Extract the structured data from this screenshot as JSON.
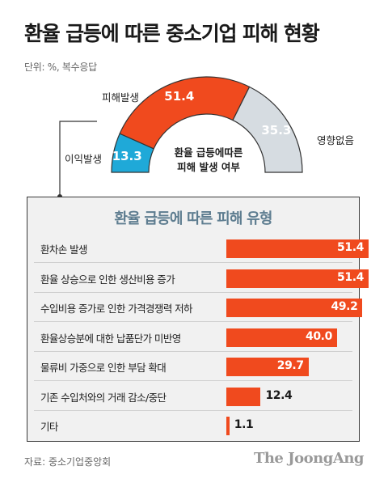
{
  "title": "환율 급등에 따른 중소기업 피해 현황",
  "unit_note": "단위: %, 복수응답",
  "source": "자료: 중소기업중앙회",
  "logo": "The JoongAng",
  "colors": {
    "damage": "#f04a1e",
    "benefit": "#1fa9d8",
    "none": "#d6dce1",
    "panel_title": "#5e7d90"
  },
  "chart_data": [
    {
      "type": "pie",
      "subtype": "half-donut",
      "title": "환율 급등에따른 피해 발생 여부",
      "center_label_lines": [
        "환율 급등에따른",
        "피해 발생 여부"
      ],
      "categories": [
        "이익발생",
        "피해발생",
        "영향없음"
      ],
      "values": [
        13.3,
        51.4,
        35.3
      ],
      "colors": [
        "#1fa9d8",
        "#f04a1e",
        "#d6dce1"
      ],
      "value_text_colors": [
        "#ffffff",
        "#ffffff",
        "#ffffff"
      ]
    },
    {
      "type": "bar",
      "orientation": "horizontal",
      "title": "환율 급등에 따른 피해 유형",
      "xlim": [
        0,
        60
      ],
      "categories": [
        "환차손 발생",
        "환율 상승으로 인한 생산비용 증가",
        "수입비용 증가로 인한 가격경쟁력 저하",
        "환율상승분에 대한 납품단가 미반영",
        "물류비 가중으로 인한 부담 확대",
        "기존 수입처와의 거래 감소/중단",
        "기타"
      ],
      "values": [
        51.4,
        51.4,
        49.2,
        40.0,
        29.7,
        12.4,
        1.1
      ],
      "value_labels": [
        "51.4",
        "51.4",
        "49.2",
        "40.0",
        "29.7",
        "12.4",
        "1.1"
      ],
      "color": "#f04a1e"
    }
  ]
}
